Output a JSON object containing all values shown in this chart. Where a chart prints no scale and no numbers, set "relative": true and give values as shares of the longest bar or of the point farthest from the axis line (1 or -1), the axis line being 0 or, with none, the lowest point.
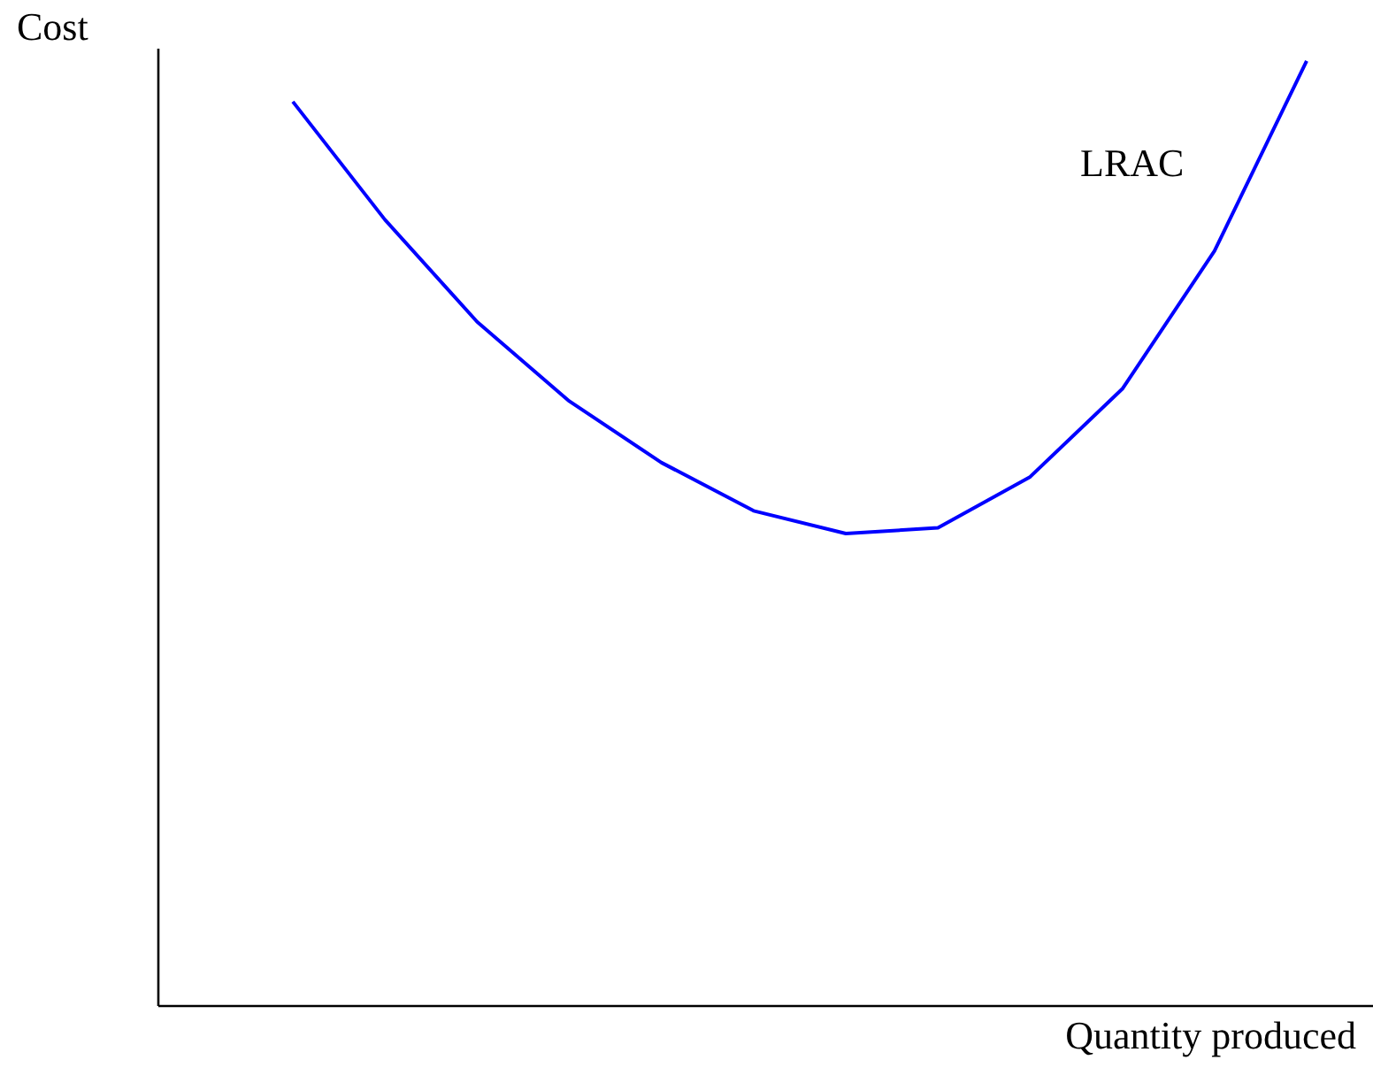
{
  "chart_data": {
    "type": "line",
    "relative": true,
    "xlabel": "Quantity produced",
    "ylabel": "Cost",
    "categories": [
      null,
      null,
      null,
      null,
      null,
      null,
      null,
      null,
      null,
      null,
      null,
      null
    ],
    "series": [
      {
        "name": "LRAC",
        "color": "#0000ff",
        "values": [
          0.957,
          0.832,
          0.724,
          0.64,
          0.575,
          0.524,
          0.5,
          0.506,
          0.56,
          0.653,
          0.799,
          1.0
        ]
      }
    ],
    "grid": false,
    "legend": false,
    "marker": "none",
    "line_style": "solid"
  }
}
